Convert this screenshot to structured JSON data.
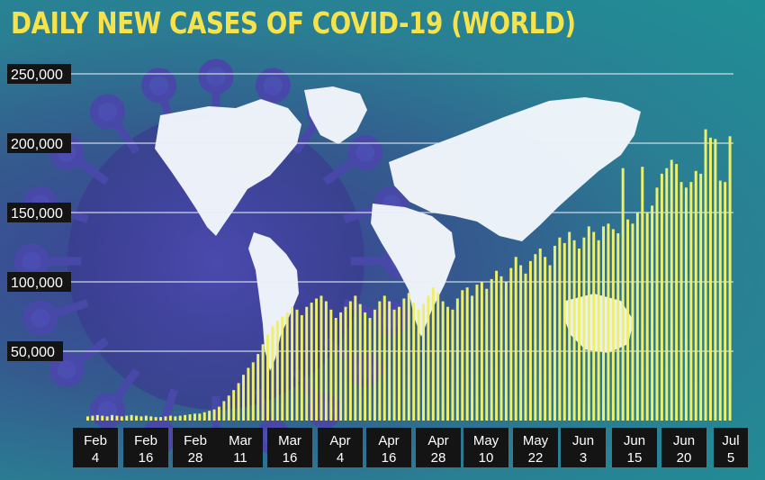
{
  "chart_data": {
    "type": "bar",
    "title": "DAILY NEW CASES OF COVID-19 (WORLD)",
    "xlabel": "",
    "ylabel": "",
    "ylim": [
      0,
      250000
    ],
    "yticks": [
      "250,000",
      "200,000",
      "150,000",
      "100,000",
      "50,000"
    ],
    "ytick_values": [
      250000,
      200000,
      150000,
      100000,
      50000
    ],
    "xticks": [
      {
        "line1": "Feb",
        "line2": "4"
      },
      {
        "line1": "Feb",
        "line2": "16"
      },
      {
        "line1": "Feb",
        "line2": "28"
      },
      {
        "line1": "Mar",
        "line2": "11"
      },
      {
        "line1": "Mar",
        "line2": "16"
      },
      {
        "line1": "Apr",
        "line2": "4"
      },
      {
        "line1": "Apr",
        "line2": "16"
      },
      {
        "line1": "Apr",
        "line2": "28"
      },
      {
        "line1": "May",
        "line2": "10"
      },
      {
        "line1": "May",
        "line2": "22"
      },
      {
        "line1": "Jun",
        "line2": "3"
      },
      {
        "line1": "Jun",
        "line2": "15"
      },
      {
        "line1": "Jun",
        "line2": "20"
      },
      {
        "line1": "Jul",
        "line2": "5"
      }
    ],
    "grid": true,
    "bar_color": "#eef06a",
    "values": [
      3000,
      3500,
      4000,
      3500,
      3000,
      4000,
      3500,
      3000,
      3500,
      4000,
      3500,
      3000,
      3500,
      3000,
      2500,
      2500,
      3000,
      3500,
      3000,
      3500,
      4000,
      4500,
      5000,
      5000,
      6000,
      7000,
      8000,
      10000,
      14000,
      18000,
      22000,
      27000,
      33000,
      38000,
      42000,
      48000,
      55000,
      62000,
      68000,
      72000,
      75000,
      78000,
      82000,
      80000,
      76000,
      82000,
      85000,
      88000,
      90000,
      86000,
      80000,
      74000,
      78000,
      82000,
      86000,
      90000,
      84000,
      78000,
      74000,
      80000,
      86000,
      90000,
      86000,
      80000,
      82000,
      88000,
      92000,
      85000,
      80000,
      84000,
      90000,
      96000,
      92000,
      86000,
      82000,
      80000,
      88000,
      94000,
      96000,
      90000,
      98000,
      100000,
      95000,
      102000,
      108000,
      104000,
      100000,
      110000,
      118000,
      112000,
      106000,
      115000,
      120000,
      124000,
      118000,
      112000,
      126000,
      132000,
      128000,
      136000,
      130000,
      124000,
      132000,
      140000,
      136000,
      130000,
      140000,
      142000,
      138000,
      135000,
      182000,
      145000,
      142000,
      150000,
      183000,
      150000,
      155000,
      168000,
      178000,
      182000,
      188000,
      185000,
      172000,
      168000,
      172000,
      180000,
      178000,
      210000,
      204000,
      203000,
      173000,
      172000,
      205000
    ]
  }
}
